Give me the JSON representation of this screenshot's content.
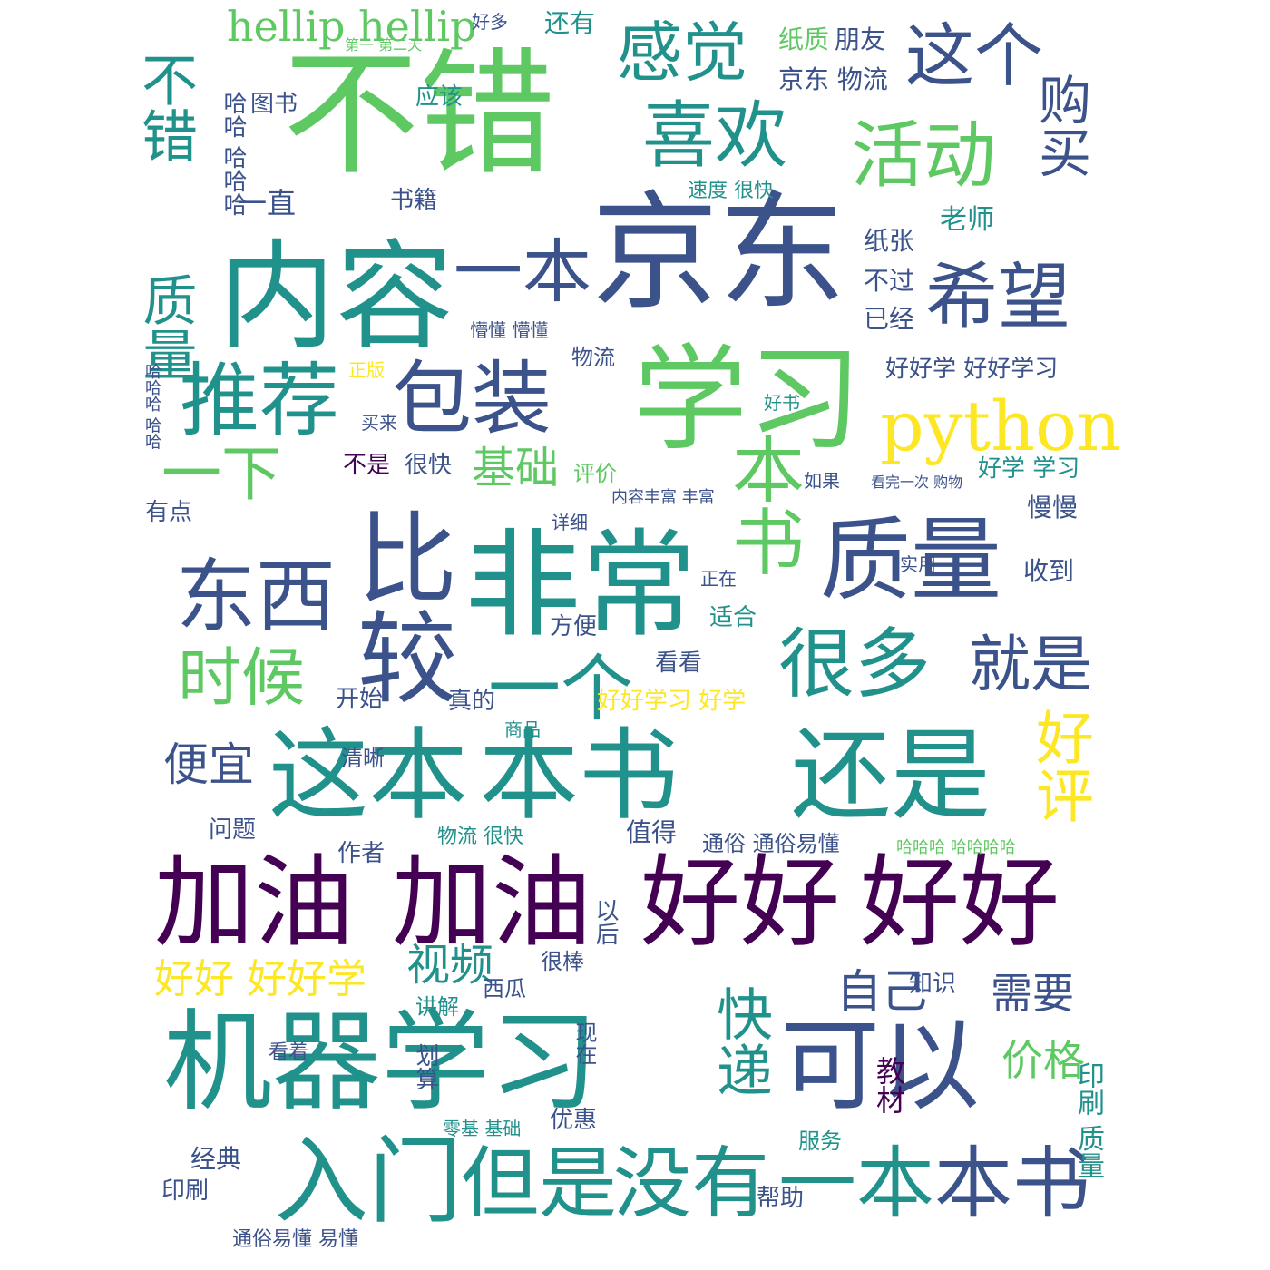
{
  "title": "",
  "palette": [
    "#440154",
    "#3b528b",
    "#21918c",
    "#5ec962",
    "#fde725"
  ],
  "words": [
    {
      "text": "不错",
      "color": "#5ec962"
    },
    {
      "text": "京东",
      "color": "#3b528b"
    },
    {
      "text": "内容",
      "color": "#21918c"
    },
    {
      "text": "学习",
      "color": "#5ec962"
    },
    {
      "text": "非常",
      "color": "#21918c"
    },
    {
      "text": "比较",
      "color": "#3b528b"
    },
    {
      "text": "这本",
      "color": "#21918c"
    },
    {
      "text": "本书",
      "color": "#21918c"
    },
    {
      "text": "还是",
      "color": "#21918c"
    },
    {
      "text": "加油",
      "color": "#440154"
    },
    {
      "text": "加油",
      "color": "#440154"
    },
    {
      "text": "好好",
      "color": "#440154"
    },
    {
      "text": "好好",
      "color": "#440154"
    },
    {
      "text": "机器学习",
      "color": "#21918c"
    },
    {
      "text": "可以",
      "color": "#3b528b"
    },
    {
      "text": "入门",
      "color": "#21918c"
    },
    {
      "text": "但是",
      "color": "#21918c"
    },
    {
      "text": "没有",
      "color": "#21918c"
    },
    {
      "text": "一本",
      "color": "#21918c"
    },
    {
      "text": "本书",
      "color": "#3b528b"
    },
    {
      "text": "质量",
      "color": "#3b528b"
    },
    {
      "text": "东西",
      "color": "#3b528b"
    },
    {
      "text": "包装",
      "color": "#3b528b"
    },
    {
      "text": "推荐",
      "color": "#21918c"
    },
    {
      "text": "很多",
      "color": "#21918c"
    },
    {
      "text": "就是",
      "color": "#3b528b"
    },
    {
      "text": "python",
      "color": "#fde725"
    },
    {
      "text": "希望",
      "color": "#3b528b"
    },
    {
      "text": "喜欢",
      "color": "#21918c"
    },
    {
      "text": "活动",
      "color": "#5ec962"
    },
    {
      "text": "感觉",
      "color": "#21918c"
    },
    {
      "text": "这个",
      "color": "#3b528b"
    },
    {
      "text": "一本",
      "color": "#3b528b"
    },
    {
      "text": "一个",
      "color": "#21918c"
    },
    {
      "text": "时候",
      "color": "#5ec962"
    },
    {
      "text": "一下",
      "color": "#5ec962"
    },
    {
      "text": "hellip hellip",
      "color": "#5ec962"
    },
    {
      "text": "好好 好好学",
      "color": "#fde725"
    },
    {
      "text": "视频",
      "color": "#21918c"
    },
    {
      "text": "基础",
      "color": "#5ec962"
    },
    {
      "text": "便宜",
      "color": "#3b528b"
    },
    {
      "text": "自己",
      "color": "#3b528b"
    },
    {
      "text": "需要",
      "color": "#3b528b"
    },
    {
      "text": "价格",
      "color": "#5ec962"
    },
    {
      "text": "质量",
      "color": "#21918c"
    },
    {
      "text": "不错",
      "color": "#21918c"
    },
    {
      "text": "购买",
      "color": "#3b528b"
    },
    {
      "text": "本书",
      "color": "#5ec962"
    },
    {
      "text": "好评",
      "color": "#fde725"
    },
    {
      "text": "快递",
      "color": "#21918c"
    },
    {
      "text": "好好学 好好学习",
      "color": "#3b528b"
    },
    {
      "text": "好学 学习",
      "color": "#21918c"
    },
    {
      "text": "好好学习 好学",
      "color": "#fde725"
    },
    {
      "text": "京东 物流",
      "color": "#3b528b"
    },
    {
      "text": "纸质",
      "color": "#5ec962"
    },
    {
      "text": "朋友",
      "color": "#3b528b"
    },
    {
      "text": "速度 很快",
      "color": "#21918c"
    },
    {
      "text": "老师",
      "color": "#21918c"
    },
    {
      "text": "纸张",
      "color": "#3b528b"
    },
    {
      "text": "不过",
      "color": "#3b528b"
    },
    {
      "text": "已经",
      "color": "#3b528b"
    },
    {
      "text": "还有",
      "color": "#21918c"
    },
    {
      "text": "好多",
      "color": "#3b528b"
    },
    {
      "text": "应该",
      "color": "#21918c"
    },
    {
      "text": "一直",
      "color": "#3b528b"
    },
    {
      "text": "图书",
      "color": "#3b528b"
    },
    {
      "text": "书籍",
      "color": "#3b528b"
    },
    {
      "text": "不是",
      "color": "#440154"
    },
    {
      "text": "很快",
      "color": "#3b528b"
    },
    {
      "text": "评价",
      "color": "#5ec962"
    },
    {
      "text": "有点",
      "color": "#3b528b"
    },
    {
      "text": "物流",
      "color": "#3b528b"
    },
    {
      "text": "懵懂 懵懂",
      "color": "#3b528b"
    },
    {
      "text": "适合",
      "color": "#21918c"
    },
    {
      "text": "方便",
      "color": "#3b528b"
    },
    {
      "text": "看看",
      "color": "#3b528b"
    },
    {
      "text": "收到",
      "color": "#3b528b"
    },
    {
      "text": "慢慢",
      "color": "#3b528b"
    },
    {
      "text": "开始",
      "color": "#3b528b"
    },
    {
      "text": "真的",
      "color": "#3b528b"
    },
    {
      "text": "清晰",
      "color": "#3b528b"
    },
    {
      "text": "问题",
      "color": "#3b528b"
    },
    {
      "text": "作者",
      "color": "#3b528b"
    },
    {
      "text": "值得",
      "color": "#3b528b"
    },
    {
      "text": "通俗 通俗易懂",
      "color": "#3b528b"
    },
    {
      "text": "知识",
      "color": "#3b528b"
    },
    {
      "text": "很棒",
      "color": "#3b528b"
    },
    {
      "text": "西瓜",
      "color": "#3b528b"
    },
    {
      "text": "讲解",
      "color": "#21918c"
    },
    {
      "text": "优惠",
      "color": "#3b528b"
    },
    {
      "text": "经典",
      "color": "#3b528b"
    },
    {
      "text": "印刷",
      "color": "#3b528b"
    },
    {
      "text": "帮助",
      "color": "#3b528b"
    },
    {
      "text": "服务",
      "color": "#21918c"
    },
    {
      "text": "看着",
      "color": "#3b528b"
    },
    {
      "text": "通俗易懂 易懂",
      "color": "#3b528b"
    },
    {
      "text": "物流 很快",
      "color": "#21918c"
    },
    {
      "text": "印刷 质量",
      "color": "#21918c"
    },
    {
      "text": "教材",
      "color": "#440154"
    },
    {
      "text": "哈哈哈 哈哈",
      "color": "#3b528b"
    },
    {
      "text": "哈哈 哈哈哈",
      "color": "#3b528b"
    },
    {
      "text": "内容丰富 丰富",
      "color": "#3b528b"
    },
    {
      "text": "详细",
      "color": "#3b528b"
    },
    {
      "text": "正版",
      "color": "#fde725"
    },
    {
      "text": "买来",
      "color": "#3b528b"
    },
    {
      "text": "好书",
      "color": "#21918c"
    },
    {
      "text": "零基 基础",
      "color": "#21918c"
    },
    {
      "text": "实用",
      "color": "#3b528b"
    },
    {
      "text": "正在",
      "color": "#3b528b"
    },
    {
      "text": "看完一次 购物",
      "color": "#3b528b"
    },
    {
      "text": "如果",
      "color": "#3b528b"
    },
    {
      "text": "商品",
      "color": "#21918c"
    },
    {
      "text": "划算",
      "color": "#3b528b"
    },
    {
      "text": "以后",
      "color": "#3b528b"
    },
    {
      "text": "现在",
      "color": "#3b528b"
    },
    {
      "text": "哈哈哈 哈哈哈哈",
      "color": "#5ec962"
    },
    {
      "text": "第一 第二天",
      "color": "#5ec962"
    }
  ]
}
